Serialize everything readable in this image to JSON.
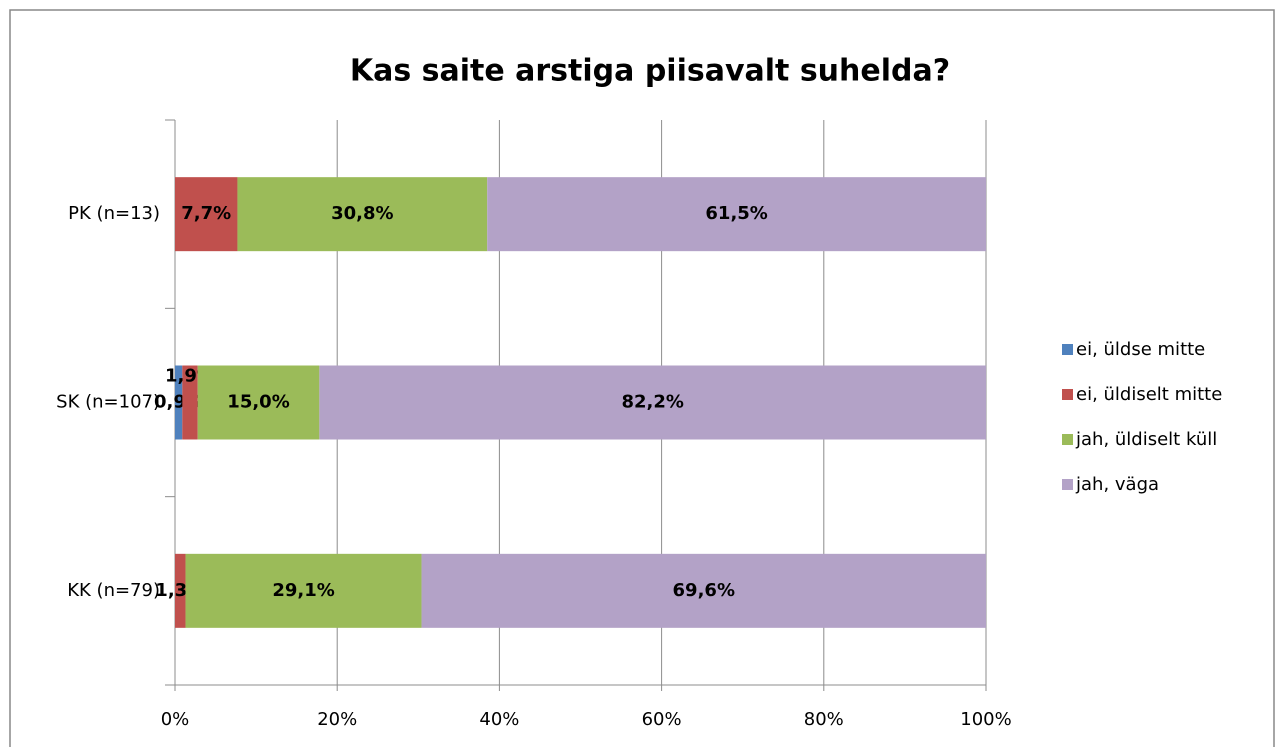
{
  "chart_data": {
    "type": "stacked-bar-horizontal",
    "title": "Kas saite arstiga piisavalt suhelda?",
    "categories": [
      "PK (n=13)",
      "SK (n=107)",
      "KK (n=79)"
    ],
    "series": [
      {
        "name": "ei, üldse mitte",
        "color": "#4f81bd",
        "values": [
          null,
          0.9,
          null
        ],
        "value_labels": [
          null,
          "0,9%",
          null
        ]
      },
      {
        "name": "ei, üldiselt mitte",
        "color": "#c0504d",
        "values": [
          7.7,
          1.9,
          1.3
        ],
        "value_labels": [
          "7,7%",
          "1,9%",
          "1,3%"
        ]
      },
      {
        "name": "jah, üldiselt küll",
        "color": "#9bbb59",
        "values": [
          30.8,
          15.0,
          29.1
        ],
        "value_labels": [
          "30,8%",
          "15,0%",
          "29,1%"
        ]
      },
      {
        "name": "jah, väga",
        "color": "#b3a2c7",
        "values": [
          61.5,
          82.2,
          69.6
        ],
        "value_labels": [
          "61,5%",
          "82,2%",
          "69,6%"
        ]
      }
    ],
    "xlim": [
      0,
      100
    ],
    "xticks": [
      {
        "value": 0,
        "label": "0%"
      },
      {
        "value": 20,
        "label": "20%"
      },
      {
        "value": 40,
        "label": "40%"
      },
      {
        "value": 60,
        "label": "60%"
      },
      {
        "value": 80,
        "label": "80%"
      },
      {
        "value": 100,
        "label": "100%"
      }
    ],
    "grid": true,
    "legend": "right"
  }
}
